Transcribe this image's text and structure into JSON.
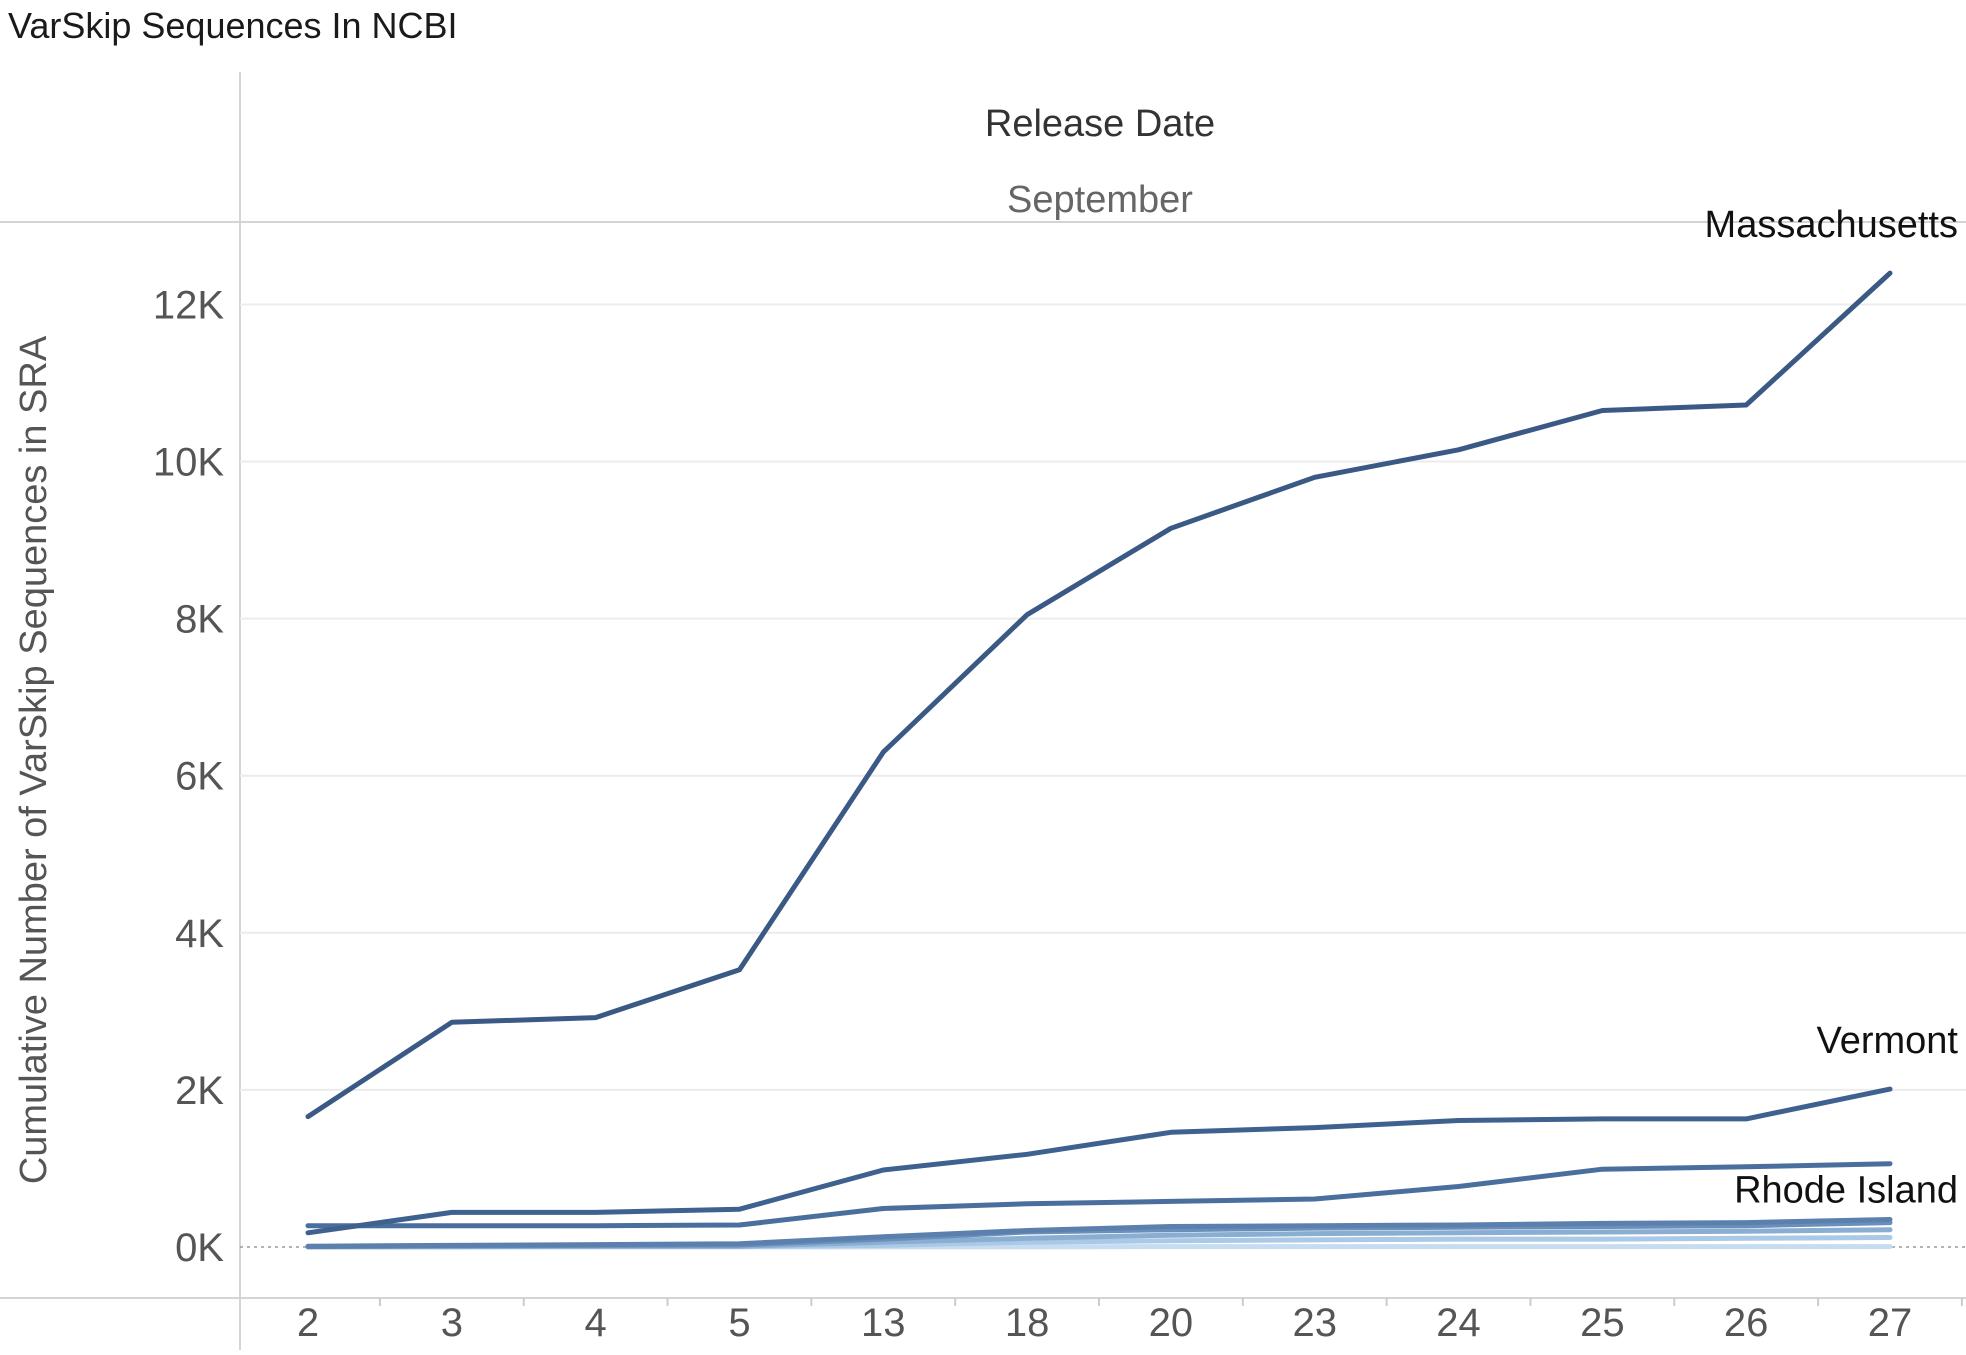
{
  "chart_data": {
    "type": "line",
    "title": "VarSkip Sequences In NCBI",
    "xlabel": "Release Date",
    "x_group_label": "September",
    "ylabel": "Cumulative Number of VarSkip Sequences in SRA",
    "categories": [
      "2",
      "3",
      "4",
      "5",
      "13",
      "18",
      "20",
      "23",
      "24",
      "25",
      "26",
      "27"
    ],
    "y_ticks": [
      "0K",
      "2K",
      "4K",
      "6K",
      "8K",
      "10K",
      "12K"
    ],
    "ylim": [
      -650,
      13050
    ],
    "grid": true,
    "series": [
      {
        "name": "Massachusetts",
        "color": "#3a5a85",
        "values": [
          1660,
          2860,
          2920,
          3530,
          6300,
          8050,
          9150,
          9800,
          10150,
          10650,
          10720,
          12400
        ]
      },
      {
        "name": "Vermont",
        "color": "#3e6190",
        "values": [
          180,
          440,
          440,
          480,
          980,
          1180,
          1460,
          1520,
          1610,
          1630,
          1630,
          2010
        ]
      },
      {
        "name": "",
        "color": "#4a6f9e",
        "values": [
          270,
          270,
          270,
          280,
          490,
          550,
          580,
          610,
          770,
          990,
          1020,
          1060
        ]
      },
      {
        "color": "#5b80ad",
        "values": [
          10,
          20,
          30,
          40,
          130,
          210,
          260,
          270,
          280,
          300,
          310,
          350
        ]
      },
      {
        "name": "Rhode Island",
        "color": "#6a8fbb",
        "values": [
          5,
          15,
          20,
          25,
          100,
          190,
          220,
          240,
          250,
          260,
          270,
          310
        ]
      },
      {
        "color": "#89aed2",
        "values": [
          0,
          5,
          10,
          10,
          60,
          110,
          150,
          170,
          180,
          190,
          200,
          220
        ]
      },
      {
        "color": "#a9c9e6",
        "values": [
          0,
          0,
          5,
          5,
          20,
          60,
          80,
          90,
          100,
          100,
          110,
          120
        ]
      },
      {
        "color": "#c6dcf0",
        "values": [
          0,
          0,
          0,
          0,
          0,
          0,
          5,
          5,
          5,
          5,
          5,
          5
        ]
      }
    ]
  }
}
